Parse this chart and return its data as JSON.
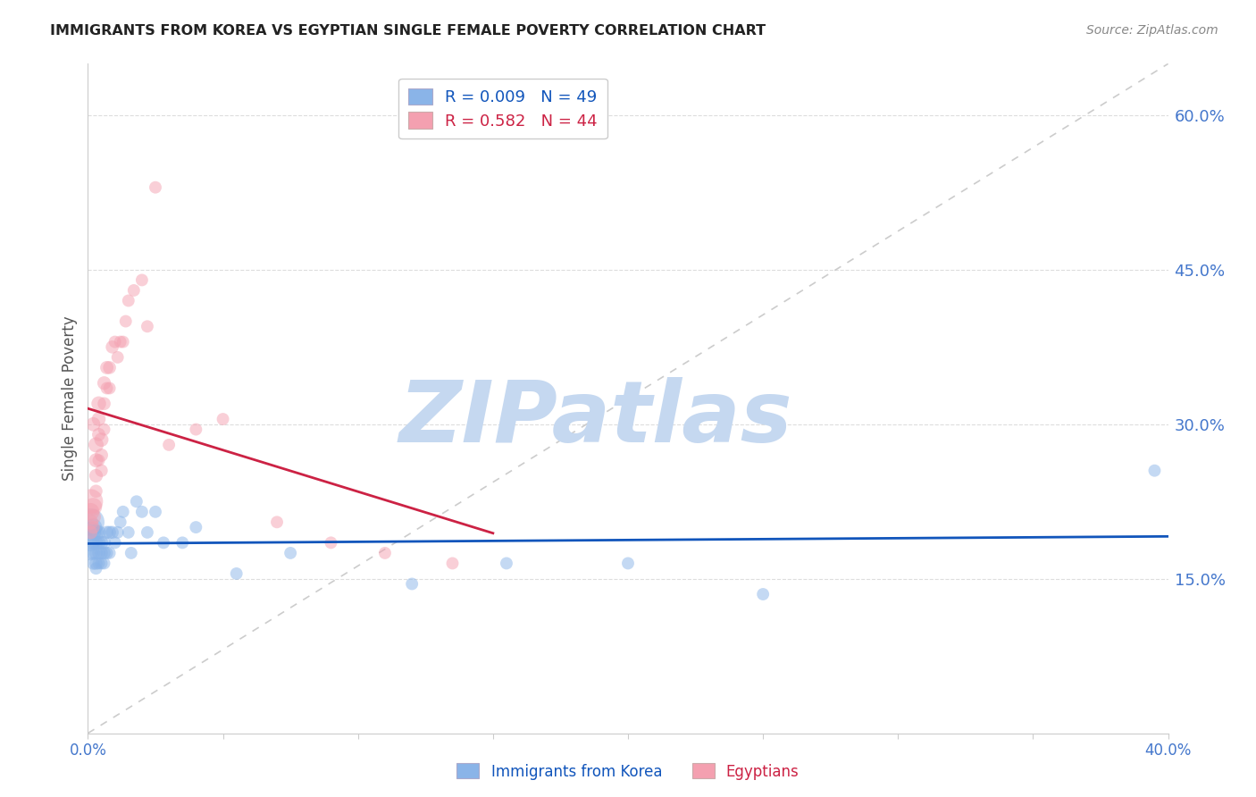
{
  "title": "IMMIGRANTS FROM KOREA VS EGYPTIAN SINGLE FEMALE POVERTY CORRELATION CHART",
  "source": "Source: ZipAtlas.com",
  "ylabel": "Single Female Poverty",
  "right_yticks": [
    0.15,
    0.3,
    0.45,
    0.6
  ],
  "right_ytick_labels": [
    "15.0%",
    "30.0%",
    "45.0%",
    "60.0%"
  ],
  "xlim": [
    0.0,
    0.4
  ],
  "ylim": [
    0.0,
    0.65
  ],
  "legend_korea_R": "0.009",
  "legend_korea_N": "49",
  "legend_egypt_R": "0.582",
  "legend_egypt_N": "44",
  "watermark": "ZIPatlas",
  "watermark_color": "#c5d8f0",
  "blue_color": "#8ab4e8",
  "pink_color": "#f4a0b0",
  "blue_line_color": "#1155bb",
  "pink_line_color": "#cc2244",
  "diagonal_color": "#cccccc",
  "background_color": "#ffffff",
  "title_color": "#222222",
  "axis_label_color": "#4477cc",
  "grid_color": "#dddddd",
  "korea_x": [
    0.001,
    0.001,
    0.001,
    0.001,
    0.002,
    0.002,
    0.002,
    0.002,
    0.002,
    0.003,
    0.003,
    0.003,
    0.003,
    0.003,
    0.004,
    0.004,
    0.004,
    0.004,
    0.005,
    0.005,
    0.005,
    0.006,
    0.006,
    0.006,
    0.007,
    0.007,
    0.008,
    0.008,
    0.009,
    0.01,
    0.011,
    0.012,
    0.013,
    0.015,
    0.016,
    0.018,
    0.02,
    0.022,
    0.025,
    0.028,
    0.035,
    0.04,
    0.055,
    0.075,
    0.12,
    0.155,
    0.2,
    0.25,
    0.395
  ],
  "korea_y": [
    0.205,
    0.195,
    0.185,
    0.175,
    0.2,
    0.195,
    0.185,
    0.175,
    0.165,
    0.195,
    0.185,
    0.175,
    0.165,
    0.16,
    0.195,
    0.185,
    0.175,
    0.165,
    0.185,
    0.175,
    0.165,
    0.185,
    0.175,
    0.165,
    0.195,
    0.175,
    0.195,
    0.175,
    0.195,
    0.185,
    0.195,
    0.205,
    0.215,
    0.195,
    0.175,
    0.225,
    0.215,
    0.195,
    0.215,
    0.185,
    0.185,
    0.2,
    0.155,
    0.175,
    0.145,
    0.165,
    0.165,
    0.135,
    0.255
  ],
  "korea_sizes": [
    500,
    300,
    200,
    150,
    200,
    150,
    130,
    120,
    110,
    150,
    130,
    120,
    110,
    100,
    130,
    120,
    110,
    100,
    120,
    110,
    100,
    120,
    110,
    100,
    110,
    100,
    110,
    100,
    110,
    100,
    100,
    100,
    100,
    100,
    100,
    100,
    100,
    100,
    100,
    100,
    100,
    100,
    100,
    100,
    100,
    100,
    100,
    100,
    100
  ],
  "egypt_x": [
    0.001,
    0.001,
    0.001,
    0.001,
    0.002,
    0.002,
    0.002,
    0.002,
    0.003,
    0.003,
    0.003,
    0.003,
    0.004,
    0.004,
    0.004,
    0.004,
    0.005,
    0.005,
    0.005,
    0.006,
    0.006,
    0.006,
    0.007,
    0.007,
    0.008,
    0.008,
    0.009,
    0.01,
    0.011,
    0.012,
    0.013,
    0.014,
    0.015,
    0.017,
    0.02,
    0.022,
    0.025,
    0.03,
    0.04,
    0.05,
    0.07,
    0.09,
    0.11,
    0.135
  ],
  "egypt_y": [
    0.225,
    0.215,
    0.205,
    0.195,
    0.22,
    0.21,
    0.3,
    0.2,
    0.28,
    0.265,
    0.25,
    0.235,
    0.32,
    0.305,
    0.29,
    0.265,
    0.285,
    0.27,
    0.255,
    0.34,
    0.32,
    0.295,
    0.355,
    0.335,
    0.355,
    0.335,
    0.375,
    0.38,
    0.365,
    0.38,
    0.38,
    0.4,
    0.42,
    0.43,
    0.44,
    0.395,
    0.53,
    0.28,
    0.295,
    0.305,
    0.205,
    0.185,
    0.175,
    0.165
  ],
  "egypt_sizes": [
    400,
    200,
    150,
    120,
    200,
    150,
    130,
    110,
    150,
    130,
    120,
    110,
    140,
    125,
    115,
    100,
    130,
    115,
    105,
    120,
    110,
    100,
    115,
    100,
    110,
    100,
    110,
    100,
    100,
    100,
    100,
    100,
    100,
    100,
    100,
    100,
    100,
    100,
    100,
    100,
    100,
    100,
    100,
    100
  ],
  "xtick_positions": [
    0.0,
    0.05,
    0.1,
    0.15,
    0.2,
    0.25,
    0.3,
    0.35,
    0.4
  ],
  "xtick_labels_show": [
    "0.0%",
    "",
    "",
    "",
    "",
    "",
    "",
    "",
    "40.0%"
  ]
}
